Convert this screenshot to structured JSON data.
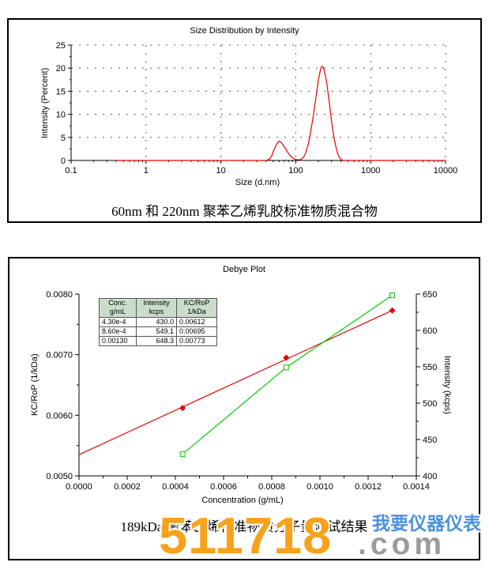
{
  "chart_data": [
    {
      "type": "line",
      "title": "Size Distribution by Intensity",
      "xlabel": "Size (d.nm)",
      "ylabel": "Intensity (Percent)",
      "caption": "60nm 和 220nm 聚苯乙烯乳胶标准物质混合物",
      "x_scale": "log",
      "xlim": [
        0.1,
        10000
      ],
      "ylim": [
        0,
        25
      ],
      "x_ticks": [
        0.1,
        1,
        10,
        100,
        1000,
        10000
      ],
      "y_ticks": [
        0,
        5,
        10,
        15,
        20,
        25
      ],
      "grid": "dashed",
      "legend": "none",
      "annotations": {
        "peak1_nm": 60,
        "peak1_percent": 4.2,
        "peak2_nm": 220,
        "peak2_percent": 20.4
      },
      "series": [
        {
          "name": "size-distribution",
          "color": "#e80000",
          "points": [
            [
              0.4,
              0
            ],
            [
              40,
              0
            ],
            [
              45,
              0.3
            ],
            [
              48,
              1.1
            ],
            [
              50,
              1.9
            ],
            [
              53,
              2.9
            ],
            [
              56,
              3.6
            ],
            [
              60,
              4.2
            ],
            [
              63,
              4.0
            ],
            [
              66,
              3.6
            ],
            [
              70,
              3.0
            ],
            [
              75,
              2.2
            ],
            [
              80,
              1.5
            ],
            [
              85,
              1.0
            ],
            [
              90,
              0.6
            ],
            [
              95,
              0.35
            ],
            [
              100,
              0.22
            ],
            [
              105,
              0.15
            ],
            [
              110,
              0.15
            ],
            [
              115,
              0.2
            ],
            [
              120,
              0.35
            ],
            [
              125,
              0.6
            ],
            [
              130,
              1.0
            ],
            [
              135,
              1.6
            ],
            [
              140,
              2.4
            ],
            [
              147,
              3.6
            ],
            [
              154,
              5.2
            ],
            [
              160,
              6.8
            ],
            [
              168,
              8.8
            ],
            [
              176,
              11.0
            ],
            [
              184,
              13.2
            ],
            [
              192,
              15.4
            ],
            [
              200,
              17.3
            ],
            [
              208,
              18.8
            ],
            [
              214,
              19.7
            ],
            [
              220,
              20.3
            ],
            [
              226,
              20.4
            ],
            [
              232,
              20.2
            ],
            [
              240,
              19.5
            ],
            [
              250,
              18.2
            ],
            [
              262,
              16.2
            ],
            [
              275,
              13.6
            ],
            [
              288,
              10.9
            ],
            [
              300,
              8.6
            ],
            [
              315,
              6.2
            ],
            [
              330,
              4.3
            ],
            [
              345,
              2.8
            ],
            [
              360,
              1.7
            ],
            [
              375,
              0.9
            ],
            [
              390,
              0.45
            ],
            [
              405,
              0.2
            ],
            [
              420,
              0.07
            ],
            [
              440,
              0
            ],
            [
              10000,
              0
            ]
          ]
        }
      ]
    },
    {
      "type": "line",
      "title": "Debye Plot",
      "xlabel": "Concentration (g/mL)",
      "caption": "189kDa 聚苯乙烯标准物质分子量测试结果",
      "xlim": [
        0,
        0.0014
      ],
      "x_ticks": [
        0,
        0.0002,
        0.0004,
        0.0006,
        0.0008,
        0.001,
        0.0012,
        0.0014
      ],
      "y_left": {
        "label": "KC/RoP (1/kDa)",
        "lim": [
          0.005,
          0.008
        ],
        "ticks": [
          0.005,
          0.006,
          0.007,
          0.008
        ]
      },
      "y_right": {
        "label": "Intensity (kcps)",
        "lim": [
          400,
          650
        ],
        "ticks": [
          400,
          450,
          500,
          550,
          600,
          650
        ]
      },
      "grid": "off",
      "series": [
        {
          "name": "kc-rop",
          "axis": "left",
          "color": "#e80000",
          "marker": "diamond",
          "points": [
            [
              0.00043,
              0.00612
            ],
            [
              0.00086,
              0.00695
            ],
            [
              0.0013,
              0.00773
            ]
          ],
          "fit_line": [
            [
              0,
              0.00535
            ],
            [
              0.0013,
              0.00773
            ]
          ]
        },
        {
          "name": "intensity",
          "axis": "right",
          "color": "#00cc00",
          "marker": "open-square",
          "points": [
            [
              0.00043,
              430.0
            ],
            [
              0.00086,
              549.1
            ],
            [
              0.0013,
              648.3
            ]
          ]
        }
      ],
      "inset_table": {
        "headers": [
          [
            "Conc.",
            "g/mL"
          ],
          [
            "Intensity",
            "kcps"
          ],
          [
            "KC/RoP",
            "1/kDa"
          ]
        ],
        "rows": [
          [
            "4.30e-4",
            "430.0",
            "0.00612"
          ],
          [
            "8.60e-4",
            "549.1",
            "0.00695"
          ],
          [
            "0.00130",
            "648.3",
            "0.00773"
          ]
        ]
      }
    }
  ],
  "watermark": {
    "number": "511718",
    "domain": ".com",
    "slogan": "我要仪器仪表",
    "orange": "#F7A21B",
    "gray": "#9B9B9B",
    "blue": "#4A90E2"
  }
}
